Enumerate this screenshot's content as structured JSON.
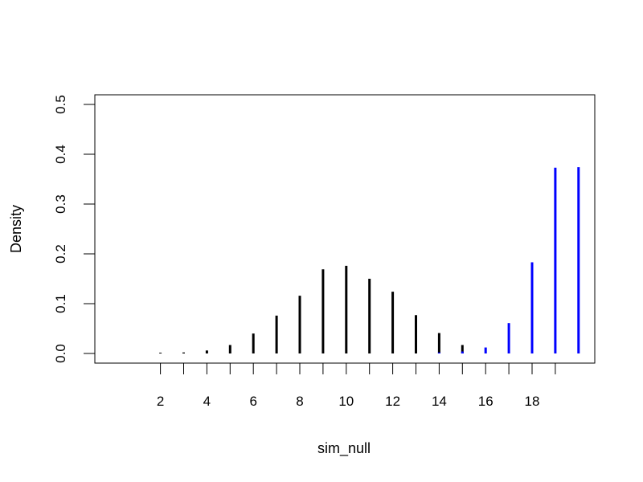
{
  "chart_data": {
    "type": "bar",
    "xlabel": "sim_null",
    "ylabel": "Density",
    "xlim": [
      0,
      21
    ],
    "ylim": [
      0,
      0.5
    ],
    "x_ticks": [
      2,
      4,
      6,
      8,
      10,
      12,
      14,
      16,
      18
    ],
    "y_ticks": [
      0.0,
      0.1,
      0.2,
      0.3,
      0.4,
      0.5
    ],
    "y_tick_labels": [
      "0.0",
      "0.1",
      "0.2",
      "0.3",
      "0.4",
      "0.5"
    ],
    "grid": false,
    "series": [
      {
        "color": "#000000",
        "x": [
          2,
          3,
          4,
          5,
          6,
          7,
          8,
          9,
          10,
          11,
          12,
          13,
          14,
          15
        ],
        "values": [
          0.001,
          0.002,
          0.006,
          0.017,
          0.04,
          0.076,
          0.116,
          0.169,
          0.176,
          0.15,
          0.124,
          0.077,
          0.041,
          0.017
        ]
      },
      {
        "color": "#0000ff",
        "x": [
          14,
          15,
          16,
          17,
          18,
          19,
          20
        ],
        "values": [
          0.002,
          0.004,
          0.012,
          0.061,
          0.183,
          0.373,
          0.374
        ]
      }
    ]
  }
}
